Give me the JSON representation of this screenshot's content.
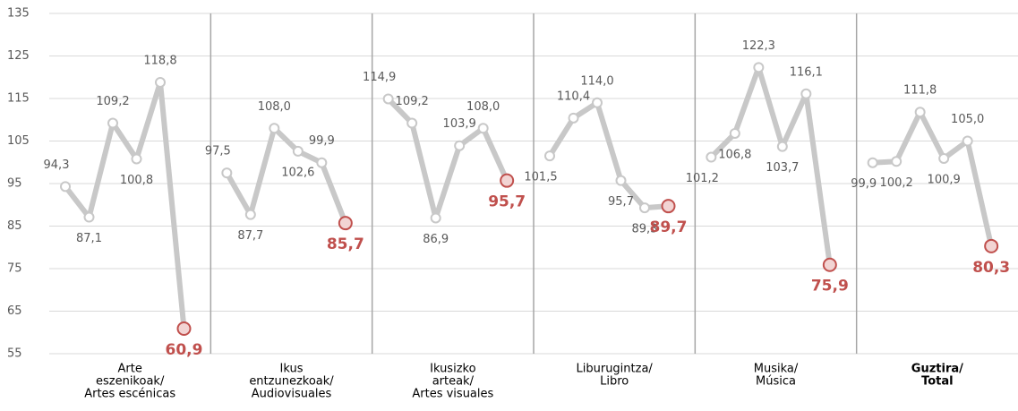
{
  "chart_data": {
    "type": "line",
    "ylim": [
      55,
      135
    ],
    "yticks": [
      55,
      65,
      75,
      85,
      95,
      105,
      115,
      125,
      135
    ],
    "grid": true,
    "color": "#c8c8c8",
    "highlight_color": "#c0504d",
    "panels": [
      {
        "label": [
          "Arte",
          "eszenikoak/",
          "Artes escénicas"
        ],
        "values": [
          94.3,
          87.1,
          109.2,
          100.8,
          118.8,
          60.9
        ],
        "value_labels": [
          "94,3",
          "87,1",
          "109,2",
          "100,8",
          "118,8",
          "60,9"
        ]
      },
      {
        "label": [
          "Ikus",
          "entzunezkoak/",
          "Audiovisuales"
        ],
        "values": [
          97.5,
          87.7,
          108.0,
          102.6,
          99.9,
          85.7
        ],
        "value_labels": [
          "97,5",
          "87,7",
          "108,0",
          "102,6",
          "99,9",
          "85,7"
        ]
      },
      {
        "label": [
          "Ikusizko",
          "arteak/",
          "Artes visuales"
        ],
        "values": [
          114.9,
          109.2,
          86.9,
          103.9,
          108.0,
          95.7
        ],
        "value_labels": [
          "114,9",
          "109,2",
          "86,9",
          "103,9",
          "108,0",
          "95,7"
        ]
      },
      {
        "label": [
          "Liburugintza/",
          "Libro"
        ],
        "values": [
          101.5,
          110.4,
          114.0,
          95.7,
          89.3,
          89.7
        ],
        "value_labels": [
          "101,5",
          "110,4",
          "114,0",
          "95,7",
          "89,3",
          "89,7"
        ]
      },
      {
        "label": [
          "Musika/",
          "Música"
        ],
        "values": [
          101.2,
          106.8,
          122.3,
          103.7,
          116.1,
          75.9
        ],
        "value_labels": [
          "101,2",
          "106,8",
          "122,3",
          "103,7",
          "116,1",
          "75,9"
        ]
      },
      {
        "label": [
          "Guztira/",
          "Total"
        ],
        "values": [
          99.9,
          100.2,
          111.8,
          100.9,
          105.0,
          80.3
        ],
        "value_labels": [
          "99,9",
          "100,2",
          "111,8",
          "100,9",
          "105,0",
          "80,3"
        ],
        "bold": true
      }
    ]
  }
}
